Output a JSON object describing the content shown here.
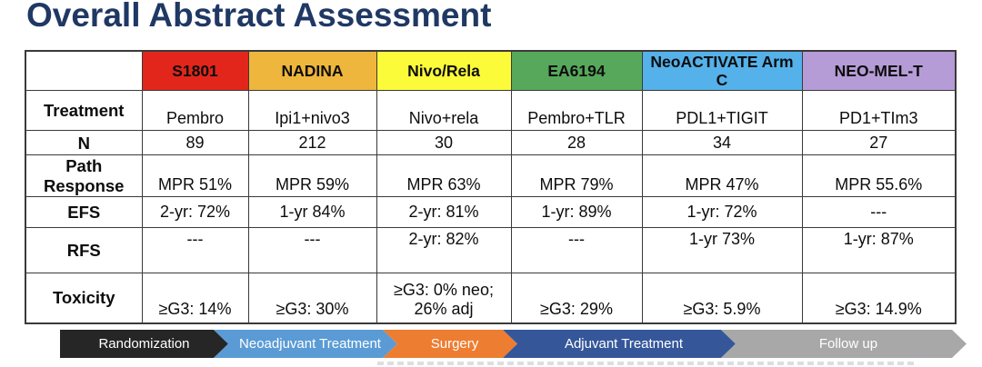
{
  "title": "Overall Abstract Assessment",
  "title_color": "#1F3864",
  "table": {
    "columns": [
      {
        "label": "",
        "color": "#FFFFFF"
      },
      {
        "label": "S1801",
        "color": "#E2261B"
      },
      {
        "label": "NADINA",
        "color": "#EFB63D"
      },
      {
        "label": "Nivo/Rela",
        "color": "#FBFB3A"
      },
      {
        "label": "EA6194",
        "color": "#57A85B"
      },
      {
        "label": "NeoACTIVATE Arm C",
        "color": "#55B1E9"
      },
      {
        "label": "NEO-MEL-T",
        "color": "#B69CD6"
      }
    ],
    "rows": [
      {
        "label": "Treatment",
        "cells": [
          "Pembro",
          "Ipi1+nivo3",
          "Nivo+rela",
          "Pembro+TLR",
          "PDL1+TIGIT",
          "PD1+TIm3"
        ]
      },
      {
        "label": "N",
        "cells": [
          "89",
          "212",
          "30",
          "28",
          "34",
          "27"
        ]
      },
      {
        "label": "Path Response",
        "cells": [
          "MPR 51%",
          "MPR 59%",
          "MPR 63%",
          "MPR 79%",
          "MPR 47%",
          "MPR 55.6%"
        ]
      },
      {
        "label": "EFS",
        "cells": [
          "2-yr: 72%",
          "1-yr 84%",
          "2-yr: 81%",
          "1-yr: 89%",
          "1-yr: 72%",
          "---"
        ]
      },
      {
        "label": "RFS",
        "cells": [
          "---",
          "---",
          "2-yr: 82%",
          "---",
          "1-yr 73%",
          "1-yr: 87%"
        ]
      },
      {
        "label": "Toxicity",
        "cells": [
          "≥G3: 14%",
          "≥G3: 30%",
          "≥G3: 0% neo; 26% adj",
          "≥G3: 29%",
          "≥G3: 5.9%",
          "≥G3: 14.9%"
        ]
      }
    ]
  },
  "timeline": {
    "steps": [
      {
        "label": "Randomization",
        "color": "#262626"
      },
      {
        "label": "Neoadjuvant Treatment",
        "color": "#5B9BD5"
      },
      {
        "label": "Surgery",
        "color": "#ED7D31"
      },
      {
        "label": "Adjuvant Treatment",
        "color": "#35579A"
      },
      {
        "label": "Follow up",
        "color": "#A8A8A8"
      }
    ]
  }
}
